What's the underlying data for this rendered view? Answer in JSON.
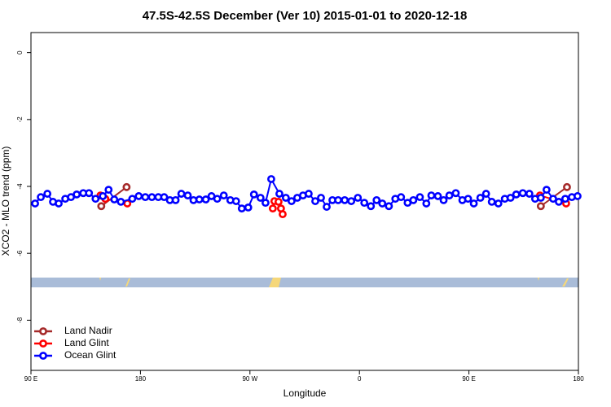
{
  "chart_data": {
    "type": "line",
    "title": "47.5S-42.5S December (Ver 10)   2015-01-01 to 2020-12-18",
    "x_label": "Longitude",
    "y_label": "XCO2 - MLO trend (ppm)",
    "xlim": [
      90,
      540
    ],
    "ylim": [
      -9.5,
      0.6
    ],
    "xticks": [
      {
        "value": 90,
        "label": "90 E"
      },
      180,
      {
        "value": 270,
        "label": "90 W"
      },
      {
        "value": 360,
        "label": "0"
      },
      {
        "value": 450,
        "label": "90 E"
      },
      {
        "value": 540,
        "label": "180"
      }
    ],
    "yticks": [
      0,
      -2,
      -4,
      -6,
      -8
    ],
    "legend": "bottom-left",
    "series": [
      {
        "name": "Land Nadir",
        "color": "#a52a2a",
        "x": [
          147.8,
          168.6,
          null,
          509.1,
          530.6
        ],
        "values": [
          -4.59,
          -4.02,
          null,
          -4.59,
          -4.02
        ]
      },
      {
        "name": "Land Glint",
        "color": "#ff0000",
        "x": [
          147.1,
          151.1,
          169.2,
          null,
          288.8,
          290.1,
          293.5,
          295.5,
          296.9,
          null,
          508.4,
          529.9
        ],
        "values": [
          -4.27,
          -4.37,
          -4.51,
          null,
          -4.66,
          -4.44,
          -4.46,
          -4.66,
          -4.83,
          null,
          -4.27,
          -4.51
        ]
      },
      {
        "name": "Ocean Glint",
        "color": "#0000ff",
        "x": [
          93.4,
          98.1,
          103.5,
          108.1,
          112.8,
          118.2,
          122.9,
          127.6,
          133.0,
          137.7,
          143.1,
          149.1,
          153.8,
          158.5,
          163.9,
          173.3,
          178.6,
          184.0,
          189.4,
          194.7,
          199.5,
          204.2,
          208.9,
          213.6,
          218.9,
          223.6,
          228.4,
          233.7,
          238.4,
          243.1,
          248.5,
          253.9,
          258.6,
          263.3,
          268.6,
          273.3,
          278.7,
          282.8,
          287.5,
          294.2,
          299.5,
          304.2,
          308.9,
          313.6,
          318.3,
          323.7,
          328.4,
          333.1,
          337.8,
          342.5,
          347.9,
          353.3,
          358.7,
          364.0,
          369.4,
          374.1,
          378.8,
          384.2,
          389.5,
          394.2,
          399.6,
          404.3,
          409.7,
          415.0,
          419.1,
          424.5,
          429.2,
          433.9,
          439.2,
          444.6,
          449.3,
          454.0,
          459.4,
          464.1,
          468.8,
          474.2,
          479.5,
          484.2,
          488.9,
          494.3,
          499.7,
          504.4,
          509.1,
          513.8,
          519.2,
          523.9,
          529.2,
          534.6,
          539.3
        ],
        "values": [
          -4.51,
          -4.32,
          -4.22,
          -4.46,
          -4.51,
          -4.37,
          -4.32,
          -4.24,
          -4.2,
          -4.2,
          -4.37,
          -4.29,
          -4.1,
          -4.39,
          -4.46,
          -4.37,
          -4.29,
          -4.32,
          -4.32,
          -4.32,
          -4.32,
          -4.41,
          -4.41,
          -4.22,
          -4.27,
          -4.41,
          -4.39,
          -4.39,
          -4.29,
          -4.37,
          -4.27,
          -4.41,
          -4.44,
          -4.66,
          -4.63,
          -4.24,
          -4.34,
          -4.49,
          -3.78,
          -4.22,
          -4.34,
          -4.44,
          -4.34,
          -4.27,
          -4.22,
          -4.44,
          -4.34,
          -4.61,
          -4.41,
          -4.41,
          -4.41,
          -4.44,
          -4.34,
          -4.49,
          -4.59,
          -4.41,
          -4.51,
          -4.59,
          -4.37,
          -4.32,
          -4.49,
          -4.41,
          -4.32,
          -4.51,
          -4.27,
          -4.29,
          -4.41,
          -4.27,
          -4.2,
          -4.41,
          -4.37,
          -4.51,
          -4.34,
          -4.22,
          -4.46,
          -4.51,
          -4.37,
          -4.34,
          -4.24,
          -4.2,
          -4.22,
          -4.37,
          -4.34,
          -4.1,
          -4.37,
          -4.46,
          -4.37,
          -4.32,
          -4.29
        ]
      }
    ]
  }
}
